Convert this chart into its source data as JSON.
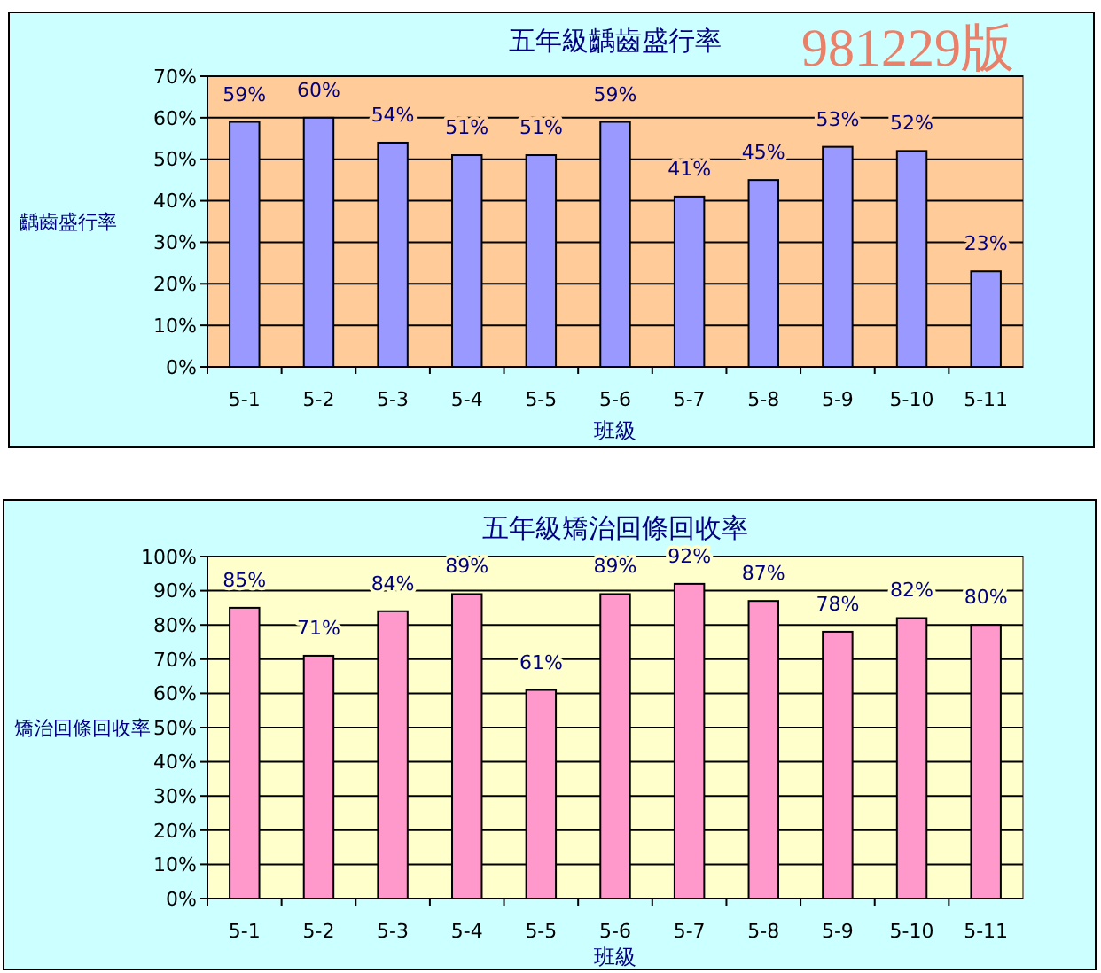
{
  "chart_data": [
    {
      "type": "bar",
      "title": "五年級齲齒盛行率",
      "xlabel": "班級",
      "ylabel": "齲齒盛行率",
      "annotations": [
        "981229版"
      ],
      "categories": [
        "5-1",
        "5-2",
        "5-3",
        "5-4",
        "5-5",
        "5-6",
        "5-7",
        "5-8",
        "5-9",
        "5-10",
        "5-11"
      ],
      "values": [
        59,
        60,
        54,
        51,
        51,
        59,
        41,
        45,
        53,
        52,
        23
      ],
      "value_labels": [
        "59%",
        "60%",
        "54%",
        "51%",
        "51%",
        "59%",
        "41%",
        "45%",
        "53%",
        "52%",
        "23%"
      ],
      "color": "#9999ff",
      "ylim": [
        0,
        70
      ],
      "yticks": [
        {
          "value": 0,
          "label": "0%"
        },
        {
          "value": 10,
          "label": "10%"
        },
        {
          "value": 20,
          "label": "20%"
        },
        {
          "value": 30,
          "label": "30%"
        },
        {
          "value": 40,
          "label": "40%"
        },
        {
          "value": 50,
          "label": "50%"
        },
        {
          "value": 60,
          "label": "60%"
        },
        {
          "value": 70,
          "label": "70%"
        }
      ],
      "grid": "y"
    },
    {
      "type": "bar",
      "title": "五年級矯治回條回收率",
      "xlabel": "班級",
      "ylabel": "矯治回條回收率",
      "categories": [
        "5-1",
        "5-2",
        "5-3",
        "5-4",
        "5-5",
        "5-6",
        "5-7",
        "5-8",
        "5-9",
        "5-10",
        "5-11"
      ],
      "values": [
        85,
        71,
        84,
        89,
        61,
        89,
        92,
        87,
        78,
        82,
        80
      ],
      "value_labels": [
        "85%",
        "71%",
        "84%",
        "89%",
        "61%",
        "89%",
        "92%",
        "87%",
        "78%",
        "82%",
        "80%"
      ],
      "color": "#ff99cc",
      "ylim": [
        0,
        100
      ],
      "yticks": [
        {
          "value": 0,
          "label": "0%"
        },
        {
          "value": 10,
          "label": "10%"
        },
        {
          "value": 20,
          "label": "20%"
        },
        {
          "value": 30,
          "label": "30%"
        },
        {
          "value": 40,
          "label": "40%"
        },
        {
          "value": 50,
          "label": "50%"
        },
        {
          "value": 60,
          "label": "60%"
        },
        {
          "value": 70,
          "label": "70%"
        },
        {
          "value": 80,
          "label": "80%"
        },
        {
          "value": 90,
          "label": "90%"
        },
        {
          "value": 100,
          "label": "100%"
        }
      ],
      "grid": "y"
    }
  ]
}
